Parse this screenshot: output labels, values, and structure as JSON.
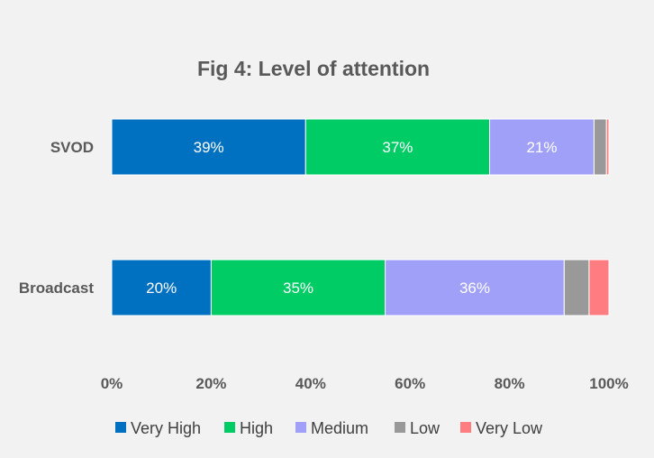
{
  "chart_data": {
    "type": "bar",
    "orientation": "horizontal",
    "stacked": "percent",
    "title": "Fig 4: Level of attention",
    "categories": [
      "SVOD",
      "Broadcast"
    ],
    "series": [
      {
        "name": "Very High",
        "color": "#0070c0",
        "values": [
          39,
          20
        ],
        "labels": [
          "39%",
          "20%"
        ]
      },
      {
        "name": "High",
        "color": "#00cc66",
        "values": [
          37,
          35
        ],
        "labels": [
          "37%",
          "35%"
        ]
      },
      {
        "name": "Medium",
        "color": "#a0a0f8",
        "values": [
          21,
          36
        ],
        "labels": [
          "21%",
          "36%"
        ]
      },
      {
        "name": "Low",
        "color": "#999999",
        "values": [
          2.5,
          5
        ],
        "labels": [
          "",
          ""
        ]
      },
      {
        "name": "Very Low",
        "color": "#ff7c80",
        "values": [
          0.5,
          4
        ],
        "labels": [
          "",
          ""
        ]
      }
    ],
    "xaxis": {
      "min": 0,
      "max": 100,
      "ticks": [
        "0%",
        "20%",
        "40%",
        "60%",
        "80%",
        "100%"
      ]
    },
    "grid": false,
    "legend_position": "bottom"
  }
}
